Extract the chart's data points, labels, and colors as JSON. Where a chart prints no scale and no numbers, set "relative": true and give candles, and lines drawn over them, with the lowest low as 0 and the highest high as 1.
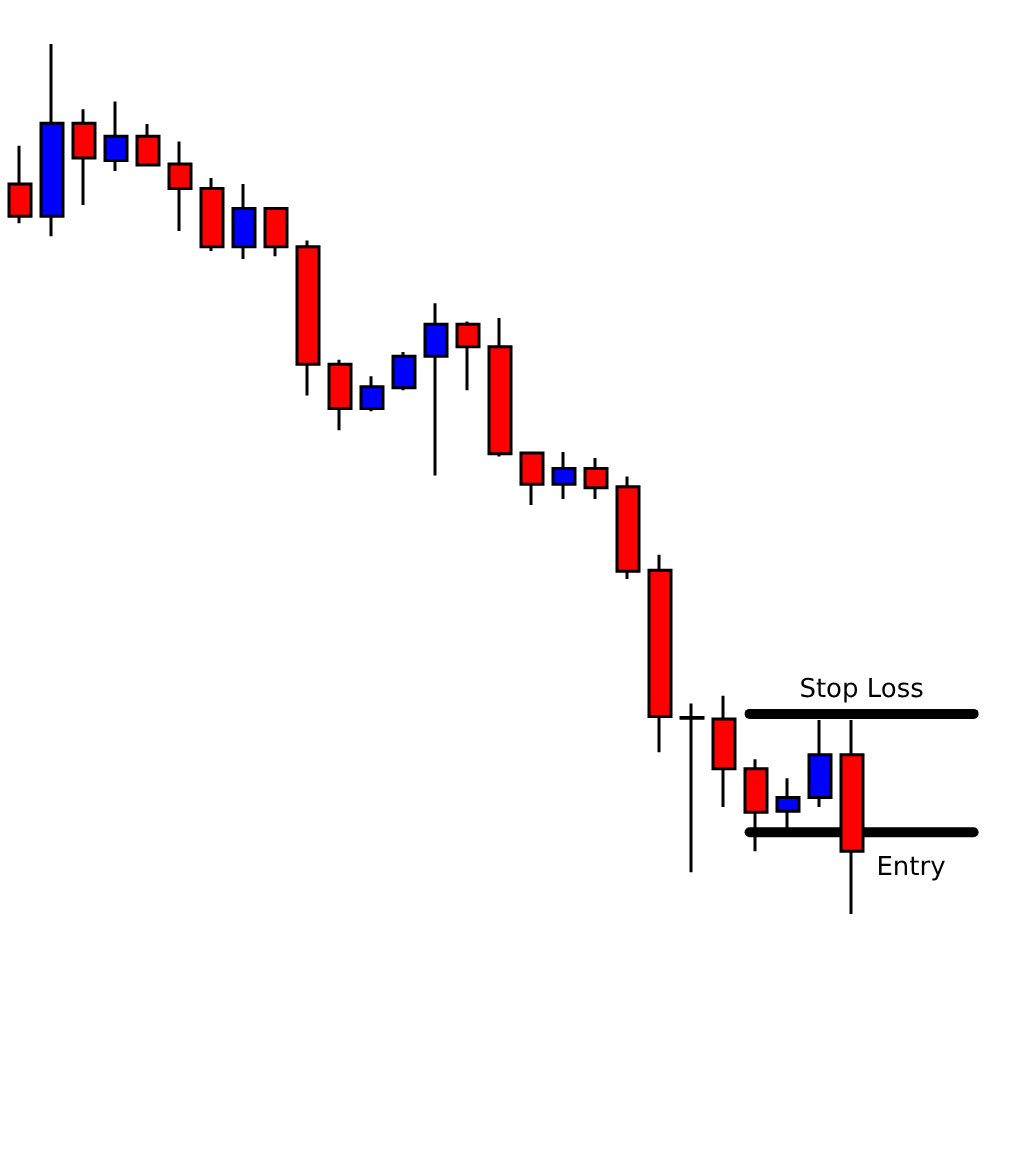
{
  "chart_data": {
    "type": "candlestick",
    "relative": true,
    "categories": [
      null,
      null,
      null,
      null,
      null,
      null,
      null,
      null,
      null,
      null,
      null,
      null,
      null,
      null,
      null,
      null,
      null,
      null,
      null,
      null,
      null,
      null,
      null,
      null,
      null,
      null,
      null
    ],
    "ohlc": [
      [
        0.839,
        0.883,
        0.794,
        0.802
      ],
      [
        0.802,
        1,
        0.779,
        0.909
      ],
      [
        0.909,
        0.925,
        0.815,
        0.869
      ],
      [
        0.866,
        0.934,
        0.854,
        0.894
      ],
      [
        0.894,
        0.908,
        0.86,
        0.861
      ],
      [
        0.862,
        0.888,
        0.785,
        0.834
      ],
      [
        0.834,
        0.846,
        0.762,
        0.767
      ],
      [
        0.767,
        0.839,
        0.753,
        0.811
      ],
      [
        0.811,
        0.811,
        0.756,
        0.767
      ],
      [
        0.767,
        0.774,
        0.596,
        0.632
      ],
      [
        0.632,
        0.637,
        0.556,
        0.581
      ],
      [
        0.581,
        0.618,
        0.578,
        0.606
      ],
      [
        0.605,
        0.646,
        0.602,
        0.641
      ],
      [
        0.641,
        0.702,
        0.504,
        0.678
      ],
      [
        0.678,
        0.681,
        0.602,
        0.652
      ],
      [
        0.652,
        0.685,
        0.526,
        0.529
      ],
      [
        0.53,
        0.53,
        0.47,
        0.494
      ],
      [
        0.494,
        0.531,
        0.477,
        0.512
      ],
      [
        0.512,
        0.524,
        0.477,
        0.49
      ],
      [
        0.491,
        0.503,
        0.385,
        0.394
      ],
      [
        0.395,
        0.413,
        0.186,
        0.227
      ],
      [
        0.225,
        0.242,
        0.048,
        0.226
      ],
      [
        0.224,
        0.251,
        0.123,
        0.167
      ],
      [
        0.167,
        0.178,
        0.072,
        0.117
      ],
      [
        0.118,
        0.156,
        0.092,
        0.134
      ],
      [
        0.134,
        0.223,
        0.123,
        0.183
      ],
      [
        0.183,
        0.223,
        0,
        0.072
      ]
    ],
    "ref_lines": [
      {
        "axis": "y",
        "value": 0.23,
        "label": "Stop Loss",
        "color": "#000000"
      },
      {
        "axis": "y",
        "value": 0.094,
        "label": "Entry",
        "color": "#000000"
      }
    ]
  }
}
